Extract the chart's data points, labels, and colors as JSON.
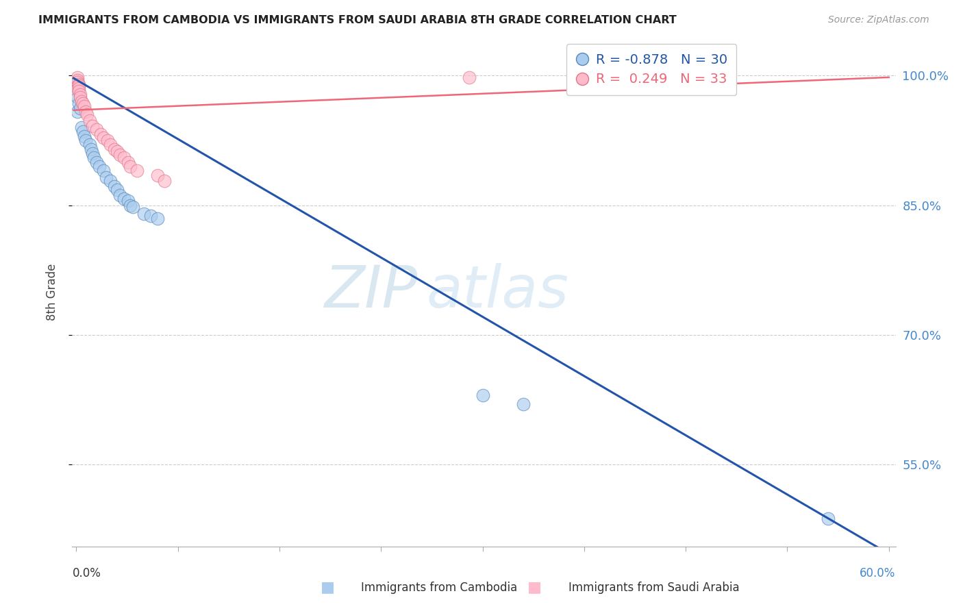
{
  "title": "IMMIGRANTS FROM CAMBODIA VS IMMIGRANTS FROM SAUDI ARABIA 8TH GRADE CORRELATION CHART",
  "source": "Source: ZipAtlas.com",
  "ylabel": "8th Grade",
  "legend": {
    "blue_R": "-0.878",
    "blue_N": "30",
    "pink_R": "0.249",
    "pink_N": "33"
  },
  "blue_scatter_x": [
    0.001,
    0.001,
    0.002,
    0.003,
    0.004,
    0.005,
    0.006,
    0.007,
    0.01,
    0.011,
    0.012,
    0.013,
    0.015,
    0.017,
    0.02,
    0.022,
    0.025,
    0.028,
    0.03,
    0.032,
    0.035,
    0.038,
    0.04,
    0.042,
    0.05,
    0.055,
    0.06,
    0.3,
    0.33,
    0.555
  ],
  "blue_scatter_y": [
    0.975,
    0.958,
    0.968,
    0.962,
    0.94,
    0.935,
    0.93,
    0.925,
    0.92,
    0.915,
    0.91,
    0.905,
    0.9,
    0.895,
    0.89,
    0.882,
    0.878,
    0.872,
    0.868,
    0.862,
    0.858,
    0.855,
    0.85,
    0.848,
    0.84,
    0.838,
    0.835,
    0.63,
    0.62,
    0.488
  ],
  "pink_scatter_x": [
    0.001,
    0.001,
    0.001,
    0.001,
    0.001,
    0.002,
    0.002,
    0.002,
    0.002,
    0.003,
    0.003,
    0.004,
    0.005,
    0.006,
    0.007,
    0.008,
    0.01,
    0.012,
    0.015,
    0.018,
    0.02,
    0.023,
    0.025,
    0.028,
    0.03,
    0.032,
    0.035,
    0.038,
    0.04,
    0.045,
    0.06,
    0.065,
    0.29
  ],
  "pink_scatter_y": [
    0.998,
    0.995,
    0.992,
    0.988,
    0.985,
    0.99,
    0.988,
    0.985,
    0.982,
    0.978,
    0.975,
    0.97,
    0.968,
    0.965,
    0.958,
    0.955,
    0.948,
    0.942,
    0.938,
    0.932,
    0.928,
    0.925,
    0.92,
    0.915,
    0.912,
    0.908,
    0.905,
    0.9,
    0.895,
    0.89,
    0.885,
    0.878,
    0.998
  ],
  "blue_line_x": [
    -0.002,
    0.6
  ],
  "blue_line_y": [
    0.997,
    0.447
  ],
  "pink_line_x": [
    -0.002,
    0.6
  ],
  "pink_line_y": [
    0.96,
    0.998
  ],
  "xlim": [
    -0.003,
    0.605
  ],
  "ylim": [
    0.455,
    1.045
  ],
  "yticks": [
    0.55,
    0.7,
    0.85,
    1.0
  ],
  "ytick_labels": [
    "55.0%",
    "70.0%",
    "85.0%",
    "100.0%"
  ],
  "xtick_positions": [
    0.0,
    0.075,
    0.15,
    0.225,
    0.3,
    0.375,
    0.45,
    0.525,
    0.6
  ],
  "grid_color": "#cccccc",
  "blue_marker_color": "#aaccee",
  "blue_marker_edge": "#5588bb",
  "blue_line_color": "#2255aa",
  "pink_marker_color": "#ffbbcc",
  "pink_marker_edge": "#dd7788",
  "pink_line_color": "#ee6677",
  "bg_color": "#ffffff",
  "title_color": "#222222",
  "right_axis_color": "#4488cc",
  "source_color": "#999999"
}
